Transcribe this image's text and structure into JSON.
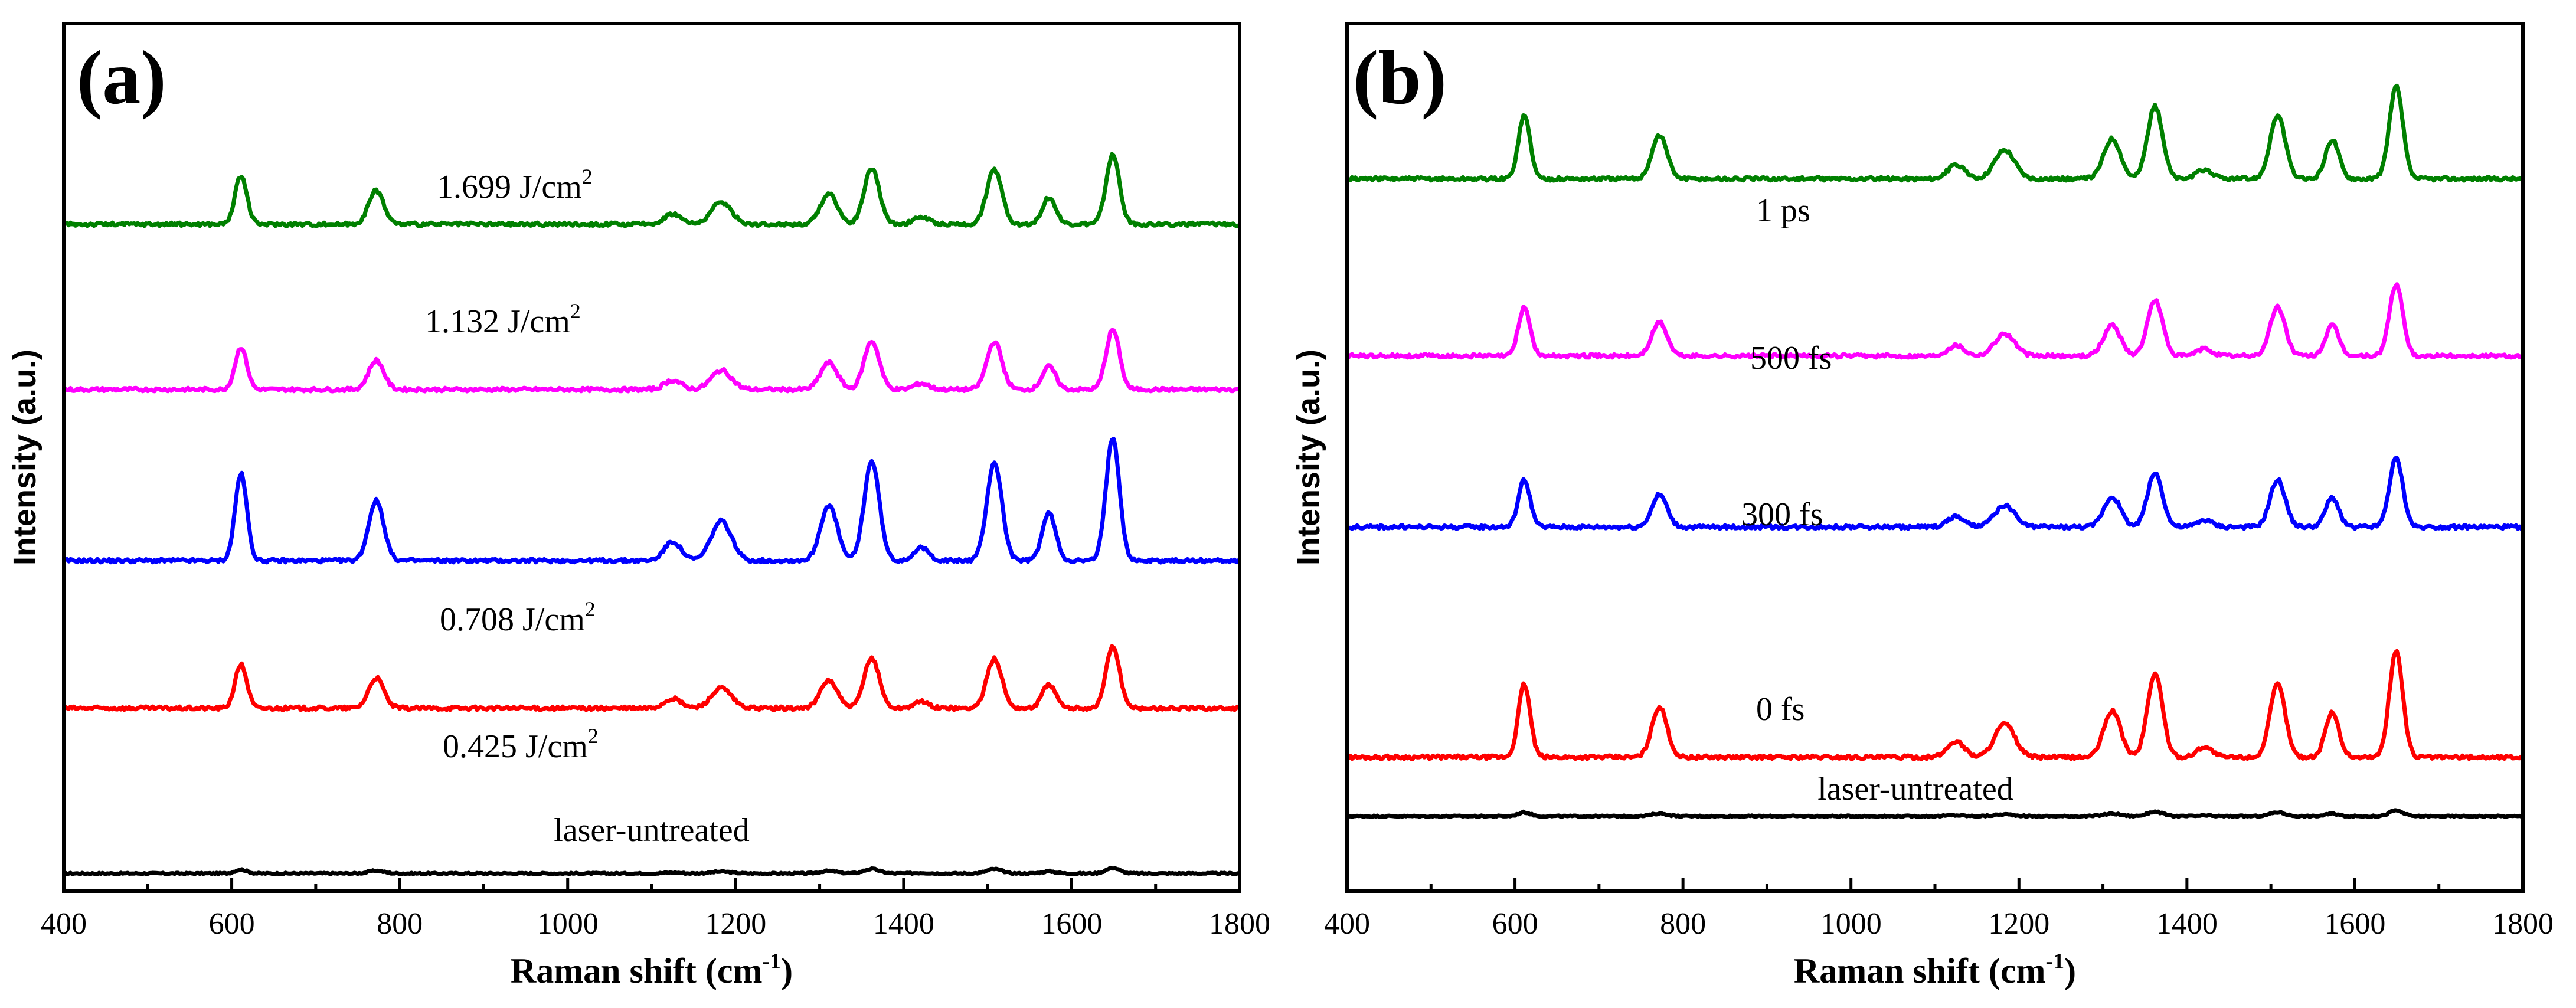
{
  "chart_data": [
    {
      "type": "line",
      "panel_label": "(a)",
      "xlabel": "Raman shift (cm",
      "xlabel_sup": "-1",
      "xlabel_tail": ")",
      "ylabel": "Intensity (a.u.)",
      "xlim": [
        400,
        1800
      ],
      "xticks": [
        "400",
        "600",
        "800",
        "1000",
        "1200",
        "1400",
        "1600",
        "1800"
      ],
      "xtick_values": [
        400,
        600,
        800,
        1000,
        1200,
        1400,
        1600,
        1800
      ],
      "peaks": [
        611,
        772,
        1125,
        1183,
        1311,
        1362,
        1421,
        1508,
        1573,
        1649
      ],
      "series": [
        {
          "name": "laser-untreated",
          "label": "laser-untreated",
          "unit": "",
          "baseline": 0.0,
          "scale": 0.12,
          "color": "#000000"
        },
        {
          "name": "0.425 J/cm2",
          "label": "0.425 J/cm",
          "unit": "2",
          "baseline": 2.8,
          "scale": 1.35,
          "color": "#ff0000"
        },
        {
          "name": "0.708 J/cm2",
          "label": "0.708 J/cm",
          "unit": "2",
          "baseline": 5.3,
          "scale": 2.68,
          "color": "#0000ff"
        },
        {
          "name": "1.132 J/cm2",
          "label": "1.132 J/cm",
          "unit": "2",
          "baseline": 8.2,
          "scale": 1.3,
          "color": "#ff00ff"
        },
        {
          "name": "1.699 J/cm2",
          "label": "1.699 J/cm",
          "unit": "2",
          "baseline": 11.0,
          "scale": 1.5,
          "color": "#008000"
        }
      ]
    },
    {
      "type": "line",
      "panel_label": "(b)",
      "xlabel": "Raman shift (cm",
      "xlabel_sup": "-1",
      "xlabel_tail": ")",
      "ylabel": "Intensity (a.u.)",
      "xlim": [
        400,
        1800
      ],
      "xticks": [
        "400",
        "600",
        "800",
        "1000",
        "1200",
        "1400",
        "1600",
        "1800"
      ],
      "xtick_values": [
        400,
        600,
        800,
        1000,
        1200,
        1400,
        1600,
        1800
      ],
      "peaks": [
        611,
        772,
        1125,
        1183,
        1311,
        1362,
        1421,
        1508,
        1573,
        1649
      ],
      "series": [
        {
          "name": "laser-untreated",
          "label": "laser-untreated",
          "unit": "",
          "baseline": 0.0,
          "scale": 0.12,
          "color": "#000000"
        },
        {
          "name": "0 fs",
          "label": "0 fs",
          "unit": "",
          "baseline": 1.0,
          "scale": 2.25,
          "color": "#ff0000"
        },
        {
          "name": "300 fs",
          "label": "300 fs",
          "unit": "",
          "baseline": 4.9,
          "scale": 1.45,
          "color": "#0000ff"
        },
        {
          "name": "500 fs",
          "label": "500 fs",
          "unit": "",
          "baseline": 7.8,
          "scale": 1.5,
          "color": "#ff00ff"
        },
        {
          "name": "1 ps",
          "label": "1 ps",
          "unit": "",
          "baseline": 10.8,
          "scale": 1.95,
          "color": "#008000"
        }
      ]
    }
  ]
}
